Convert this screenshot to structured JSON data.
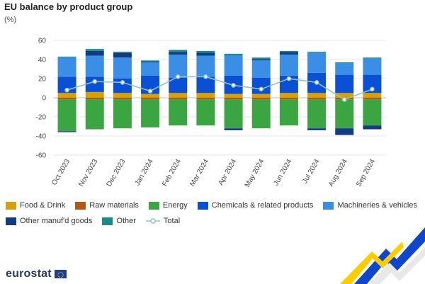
{
  "title": "EU balance by product group",
  "unit": "(%)",
  "brand": {
    "name": "eurostat",
    "flag_color": "#1c3f94"
  },
  "chart_data": {
    "type": "bar",
    "stacked": true,
    "categories": [
      "Oct 2023",
      "Nov 2023",
      "Dec 2023",
      "Jan 2024",
      "Feb 2024",
      "Mar 2024",
      "Apr 2024",
      "May 2024",
      "Jun 2024",
      "Jul 2024",
      "Aug 2024",
      "Sep 2024"
    ],
    "ylim": [
      -60,
      60
    ],
    "yticks": [
      -60,
      -40,
      -20,
      0,
      20,
      40,
      60
    ],
    "grid": true,
    "legend_position": "bottom",
    "series": [
      {
        "name": "Food & Drink",
        "color": "#d4a10a",
        "values": [
          5,
          6,
          5,
          4,
          5,
          5,
          4,
          4,
          5,
          5,
          5,
          5
        ]
      },
      {
        "name": "Raw materials",
        "color": "#b15a17",
        "values": [
          -2,
          -2,
          -2,
          -2,
          -2,
          -2,
          -2,
          -2,
          -2,
          -2,
          -2,
          -2
        ]
      },
      {
        "name": "Energy",
        "color": "#3aa541",
        "values": [
          -33,
          -31,
          -30,
          -29,
          -27,
          -27,
          -30,
          -30,
          -27,
          -30,
          -30,
          -27
        ]
      },
      {
        "name": "Chemicals  & related products",
        "color": "#0a50d4",
        "values": [
          17,
          16,
          15,
          19,
          16,
          17,
          19,
          17,
          18,
          21,
          19,
          19
        ]
      },
      {
        "name": "Machineries & vehicles",
        "color": "#3a8ee6",
        "values": [
          20,
          22,
          22,
          14,
          24,
          22,
          21,
          18,
          22,
          21,
          12,
          17
        ]
      },
      {
        "name": "Other manuf'd goods",
        "color": "#123b82",
        "values": [
          -1,
          5,
          5,
          1,
          3,
          3,
          -2,
          1,
          3,
          -2,
          -7,
          -4
        ]
      },
      {
        "name": "Other",
        "color": "#1a8a8a",
        "values": [
          1,
          2,
          1,
          1,
          2,
          2,
          2,
          2,
          1,
          1,
          1,
          1
        ]
      }
    ],
    "total": {
      "name": "Total",
      "color": "#8fc3c3",
      "values": [
        8,
        17,
        16,
        7,
        22,
        22,
        13,
        9,
        20,
        16,
        -2,
        9
      ]
    }
  }
}
